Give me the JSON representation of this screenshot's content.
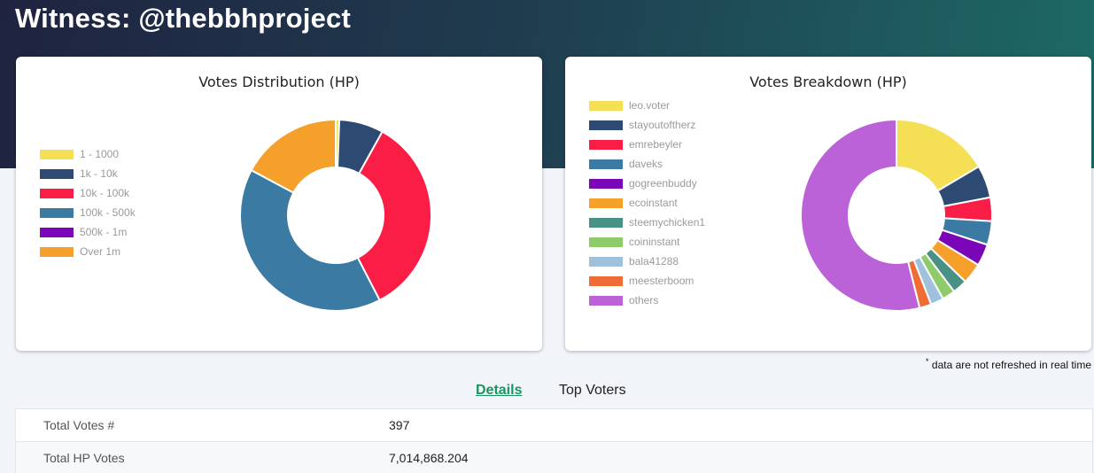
{
  "page": {
    "title": "Witness: @thebbhproject"
  },
  "distribution": {
    "title": "Votes Distribution (HP)",
    "chart_data": {
      "type": "pie",
      "title": "Votes Distribution (HP)",
      "legend_position": "left",
      "categories": [
        "1 - 1000",
        "1k - 10k",
        "10k - 100k",
        "100k - 500k",
        "500k - 1m",
        "Over 1m"
      ],
      "values": [
        0.6,
        7.5,
        34.3,
        40.4,
        0,
        17.2
      ],
      "colors": [
        "#f5df55",
        "#2d4b72",
        "#fa1e46",
        "#3a7aa3",
        "#7a06b8",
        "#f5a02a"
      ]
    }
  },
  "breakdown": {
    "title": "Votes Breakdown (HP)",
    "chart_data": {
      "type": "pie",
      "title": "Votes Breakdown (HP)",
      "legend_position": "top-left",
      "categories": [
        "leo.voter",
        "stayoutoftherz",
        "emrebeyler",
        "daveks",
        "gogreenbuddy",
        "ecoinstant",
        "steemychicken1",
        "coininstant",
        "bala41288",
        "meesterboom",
        "others"
      ],
      "values": [
        16.5,
        5.5,
        4.0,
        4.0,
        3.7,
        3.5,
        2.5,
        2.2,
        2.2,
        2.0,
        53.9
      ],
      "colors": [
        "#f5df55",
        "#2d4b72",
        "#fa1e46",
        "#3a7aa3",
        "#7a06b8",
        "#f5a02a",
        "#4a9185",
        "#8ecb6a",
        "#9fc1dc",
        "#ee6d35",
        "#bb62d8"
      ]
    }
  },
  "note": {
    "mark": "*",
    "text": " data are not refreshed in real time"
  },
  "tabs": {
    "details": "Details",
    "top_voters": "Top Voters"
  },
  "details": [
    {
      "label": "Total Votes #",
      "value": "397"
    },
    {
      "label": "Total HP Votes",
      "value": "7,014,868.204"
    }
  ]
}
